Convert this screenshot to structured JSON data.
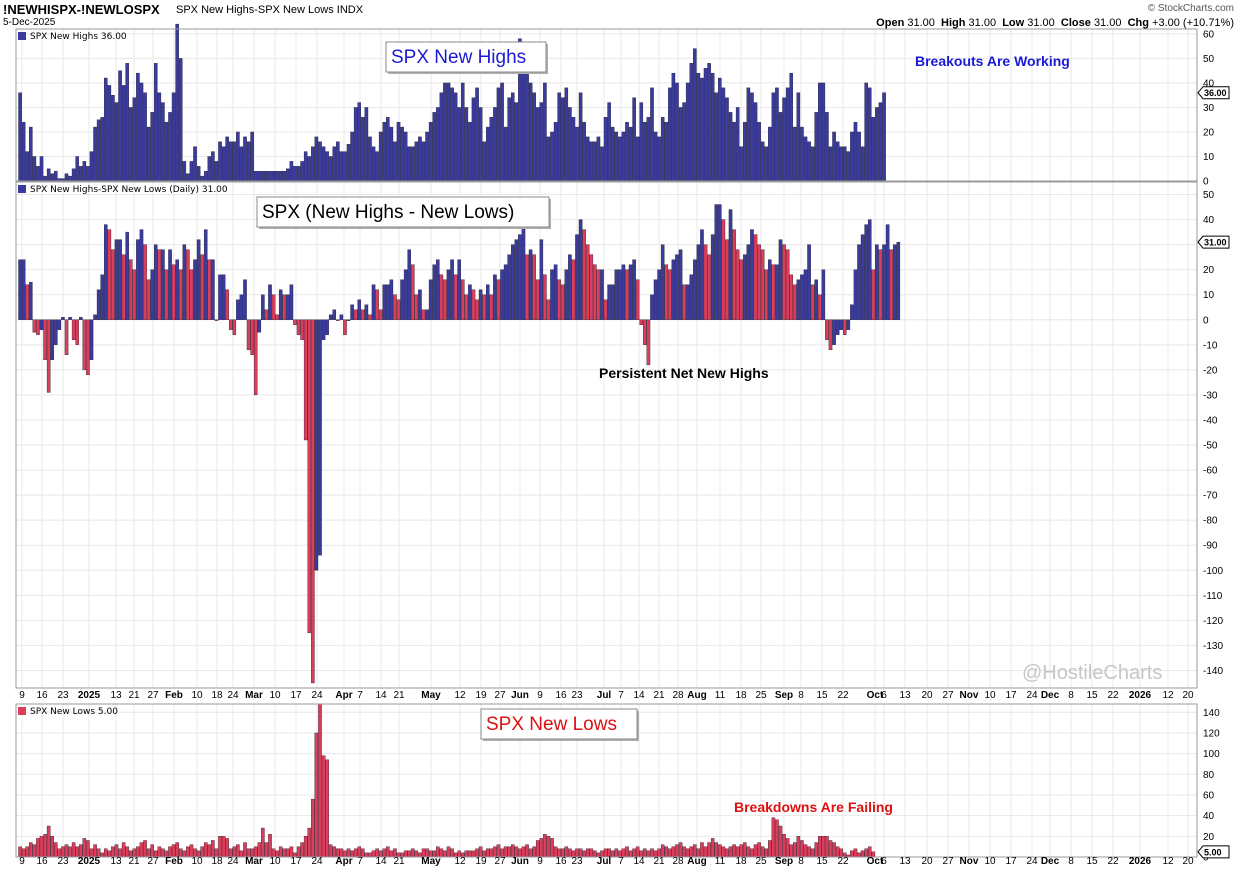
{
  "header": {
    "symbol": "!NEWHISPX-!NEWLOSPX",
    "description": "SPX New Highs-SPX New Lows INDX",
    "date": "5-Dec-2025",
    "brand": "© StockCharts.com",
    "open_label": "Open",
    "open": "31.00",
    "high_label": "High",
    "high": "31.00",
    "low_label": "Low",
    "low": "31.00",
    "close_label": "Close",
    "close": "31.00",
    "chg_label": "Chg",
    "chg": "+3.00 (+10.71%)"
  },
  "colors": {
    "up": "#3b3b9c",
    "down": "#dc3d5a",
    "grid": "#e8e8e8",
    "blue_text": "#1a1ad6",
    "red_text": "#dd1111"
  },
  "xaxis_labels": [
    {
      "t": "9",
      "major": false
    },
    {
      "t": "16",
      "major": false
    },
    {
      "t": "23",
      "major": false
    },
    {
      "t": "2025",
      "major": true
    },
    {
      "t": "13",
      "major": false
    },
    {
      "t": "21",
      "major": false
    },
    {
      "t": "27",
      "major": false
    },
    {
      "t": "Feb",
      "major": true
    },
    {
      "t": "10",
      "major": false
    },
    {
      "t": "18",
      "major": false
    },
    {
      "t": "24",
      "major": false
    },
    {
      "t": "Mar",
      "major": true
    },
    {
      "t": "10",
      "major": false
    },
    {
      "t": "17",
      "major": false
    },
    {
      "t": "24",
      "major": false
    },
    {
      "t": "Apr",
      "major": true
    },
    {
      "t": "7",
      "major": false
    },
    {
      "t": "14",
      "major": false
    },
    {
      "t": "21",
      "major": false
    },
    {
      "t": "May",
      "major": true
    },
    {
      "t": "12",
      "major": false
    },
    {
      "t": "19",
      "major": false
    },
    {
      "t": "27",
      "major": false
    },
    {
      "t": "Jun",
      "major": true
    },
    {
      "t": "9",
      "major": false
    },
    {
      "t": "16",
      "major": false
    },
    {
      "t": "23",
      "major": false
    },
    {
      "t": "Jul",
      "major": true
    },
    {
      "t": "7",
      "major": false
    },
    {
      "t": "14",
      "major": false
    },
    {
      "t": "21",
      "major": false
    },
    {
      "t": "28",
      "major": false
    },
    {
      "t": "Aug",
      "major": true
    },
    {
      "t": "11",
      "major": false
    },
    {
      "t": "18",
      "major": false
    },
    {
      "t": "25",
      "major": false
    },
    {
      "t": "Sep",
      "major": true
    },
    {
      "t": "8",
      "major": false
    },
    {
      "t": "15",
      "major": false
    },
    {
      "t": "22",
      "major": false
    },
    {
      "t": "Oct",
      "major": true
    },
    {
      "t": "6",
      "major": false
    },
    {
      "t": "13",
      "major": false
    },
    {
      "t": "20",
      "major": false
    },
    {
      "t": "27",
      "major": false
    },
    {
      "t": "Nov",
      "major": true
    },
    {
      "t": "10",
      "major": false
    },
    {
      "t": "17",
      "major": false
    },
    {
      "t": "24",
      "major": false
    },
    {
      "t": "Dec",
      "major": true
    },
    {
      "t": "8",
      "major": false
    },
    {
      "t": "15",
      "major": false
    },
    {
      "t": "22",
      "major": false
    },
    {
      "t": "2026",
      "major": true
    },
    {
      "t": "12",
      "major": false
    },
    {
      "t": "20",
      "major": false
    }
  ],
  "chart_data": [
    {
      "type": "bar",
      "id": "new_highs",
      "panel_label": "SPX New Highs 36.00",
      "title": "SPX New Highs",
      "annotation": "Breakouts Are Working",
      "ylim": [
        0,
        62
      ],
      "yticks": [
        0,
        10,
        20,
        30,
        40,
        50,
        60
      ],
      "last_value": "36.00",
      "values": [
        36,
        24,
        12,
        22,
        10,
        6,
        10,
        2,
        5,
        3,
        4,
        1,
        1,
        3,
        2,
        5,
        10,
        6,
        8,
        6,
        12,
        22,
        25,
        26,
        42,
        39,
        35,
        32,
        45,
        39,
        48,
        30,
        34,
        44,
        40,
        36,
        22,
        28,
        48,
        36,
        32,
        24,
        28,
        36,
        64,
        50,
        8,
        3,
        8,
        14,
        6,
        2,
        4,
        10,
        12,
        8,
        16,
        14,
        18,
        16,
        16,
        20,
        14,
        18,
        16,
        20,
        4,
        4,
        4,
        4,
        4,
        4,
        4,
        4,
        4,
        5,
        8,
        6,
        6,
        8,
        12,
        10,
        14,
        18,
        16,
        14,
        12,
        10,
        14,
        16,
        12,
        12,
        15,
        20,
        30,
        32,
        26,
        30,
        18,
        14,
        12,
        20,
        24,
        26,
        22,
        16,
        24,
        22,
        20,
        14,
        14,
        16,
        18,
        16,
        20,
        24,
        28,
        30,
        36,
        40,
        40,
        38,
        36,
        30,
        40,
        30,
        24,
        34,
        38,
        30,
        16,
        22,
        26,
        30,
        38,
        40,
        22,
        34,
        36,
        32,
        58,
        48,
        44,
        40,
        36,
        30,
        32,
        40,
        18,
        20,
        24,
        36,
        34,
        38,
        30,
        26,
        22,
        36,
        24,
        18,
        16,
        16,
        18,
        14,
        26,
        32,
        22,
        20,
        18,
        20,
        24,
        22,
        34,
        18,
        32,
        24,
        26,
        38,
        20,
        18,
        26,
        24,
        38,
        44,
        40,
        30,
        32,
        40,
        48,
        54,
        44,
        42,
        46,
        48,
        44,
        36,
        42,
        38,
        34,
        28,
        24,
        30,
        14,
        24,
        38,
        36,
        32,
        24,
        16,
        14,
        22,
        36,
        38,
        28,
        34,
        38,
        44,
        22,
        36,
        22,
        18,
        16,
        14,
        28,
        40,
        40,
        28,
        14,
        20,
        16,
        14,
        14,
        12,
        20,
        24,
        20,
        14,
        40,
        38,
        26,
        30,
        32,
        36
      ]
    },
    {
      "type": "bar",
      "id": "net_new_highs",
      "panel_label": "SPX New Highs-SPX New Lows (Daily) 31.00",
      "title": "SPX (New Highs - New Lows)",
      "annotation": "Persistent Net New Highs",
      "ylim": [
        -147,
        55
      ],
      "yticks": [
        -140,
        -130,
        -120,
        -110,
        -100,
        -90,
        -80,
        -70,
        -60,
        -50,
        -40,
        -30,
        -20,
        -10,
        0,
        10,
        20,
        30,
        40,
        50
      ],
      "last_value": "31.00",
      "values": [
        24,
        24,
        14,
        15,
        -5,
        -6,
        -4,
        -16,
        -29,
        -16,
        -10,
        -4,
        1,
        -14,
        1,
        -8,
        -10,
        1,
        -20,
        -22,
        -16,
        2,
        12,
        18,
        38,
        36,
        28,
        32,
        32,
        26,
        35,
        24,
        20,
        32,
        36,
        30,
        16,
        20,
        30,
        28,
        28,
        20,
        28,
        22,
        24,
        20,
        30,
        28,
        20,
        24,
        32,
        26,
        36,
        24,
        24,
        0,
        18,
        18,
        12,
        -4,
        -6,
        8,
        10,
        16,
        -12,
        -14,
        -30,
        -5,
        10,
        4,
        14,
        10,
        2,
        12,
        10,
        10,
        14,
        -2,
        -6,
        -8,
        -48,
        -125,
        -145,
        -100,
        -94,
        -8,
        -6,
        2,
        4,
        0,
        2,
        -6,
        0,
        6,
        4,
        8,
        4,
        6,
        2,
        14,
        12,
        4,
        14,
        14,
        16,
        10,
        8,
        16,
        20,
        28,
        22,
        10,
        12,
        4,
        4,
        16,
        22,
        24,
        18,
        16,
        20,
        24,
        18,
        24,
        16,
        10,
        14,
        12,
        8,
        12,
        10,
        14,
        10,
        18,
        16,
        20,
        22,
        26,
        30,
        32,
        34,
        38,
        26,
        28,
        26,
        16,
        32,
        18,
        8,
        20,
        22,
        16,
        14,
        20,
        26,
        24,
        34,
        40,
        36,
        30,
        26,
        22,
        20,
        20,
        8,
        14,
        14,
        20,
        20,
        22,
        20,
        22,
        24,
        16,
        -2,
        -10,
        -18,
        10,
        16,
        20,
        30,
        22,
        20,
        24,
        26,
        28,
        14,
        14,
        18,
        24,
        30,
        36,
        30,
        26,
        34,
        46,
        46,
        40,
        32,
        44,
        36,
        28,
        24,
        26,
        30,
        36,
        34,
        30,
        28,
        20,
        24,
        22,
        22,
        32,
        30,
        28,
        18,
        14,
        16,
        18,
        20,
        30,
        14,
        16,
        10,
        20,
        -8,
        -12,
        -10,
        -6,
        -4,
        -6,
        -4,
        6,
        20,
        30,
        34,
        38,
        40,
        20,
        30,
        28,
        30,
        38,
        28,
        30,
        31
      ]
    },
    {
      "type": "bar",
      "id": "new_lows",
      "panel_label": "SPX New Lows 5.00",
      "title": "SPX New Lows",
      "annotation": "Breakdowns Are Failing",
      "ylim": [
        0,
        148
      ],
      "yticks": [
        0,
        20,
        40,
        60,
        80,
        100,
        120,
        140
      ],
      "last_value": "5.00",
      "values": [
        10,
        8,
        10,
        14,
        12,
        18,
        20,
        22,
        30,
        20,
        14,
        8,
        10,
        12,
        10,
        14,
        10,
        12,
        18,
        16,
        8,
        12,
        8,
        4,
        8,
        6,
        10,
        12,
        8,
        14,
        10,
        6,
        8,
        10,
        14,
        16,
        8,
        12,
        6,
        10,
        8,
        6,
        10,
        12,
        14,
        8,
        6,
        10,
        12,
        8,
        6,
        10,
        14,
        12,
        16,
        8,
        20,
        20,
        18,
        8,
        10,
        12,
        6,
        14,
        8,
        8,
        10,
        14,
        28,
        14,
        22,
        8,
        6,
        10,
        8,
        8,
        10,
        4,
        10,
        14,
        20,
        28,
        56,
        120,
        148,
        98,
        94,
        12,
        10,
        8,
        8,
        6,
        8,
        6,
        8,
        10,
        8,
        4,
        4,
        6,
        8,
        6,
        8,
        10,
        6,
        8,
        4,
        4,
        6,
        6,
        8,
        6,
        4,
        8,
        8,
        6,
        6,
        10,
        8,
        6,
        10,
        8,
        4,
        6,
        4,
        6,
        6,
        6,
        8,
        10,
        6,
        8,
        8,
        10,
        12,
        8,
        10,
        10,
        12,
        10,
        8,
        10,
        12,
        8,
        10,
        16,
        18,
        22,
        20,
        18,
        10,
        8,
        8,
        10,
        8,
        6,
        8,
        8,
        6,
        8,
        8,
        6,
        4,
        6,
        8,
        8,
        6,
        8,
        6,
        8,
        10,
        6,
        8,
        10,
        6,
        8,
        6,
        8,
        6,
        8,
        12,
        10,
        8,
        10,
        12,
        14,
        10,
        8,
        10,
        12,
        8,
        14,
        10,
        14,
        18,
        14,
        12,
        10,
        8,
        10,
        12,
        10,
        12,
        14,
        10,
        8,
        12,
        14,
        10,
        8,
        16,
        38,
        36,
        30,
        22,
        18,
        12,
        14,
        20,
        16,
        12,
        10,
        8,
        14,
        20,
        20,
        20,
        16,
        14,
        10,
        8,
        4,
        2,
        6,
        8,
        4,
        6,
        8,
        10,
        5
      ]
    }
  ],
  "watermark": "@HostileCharts"
}
